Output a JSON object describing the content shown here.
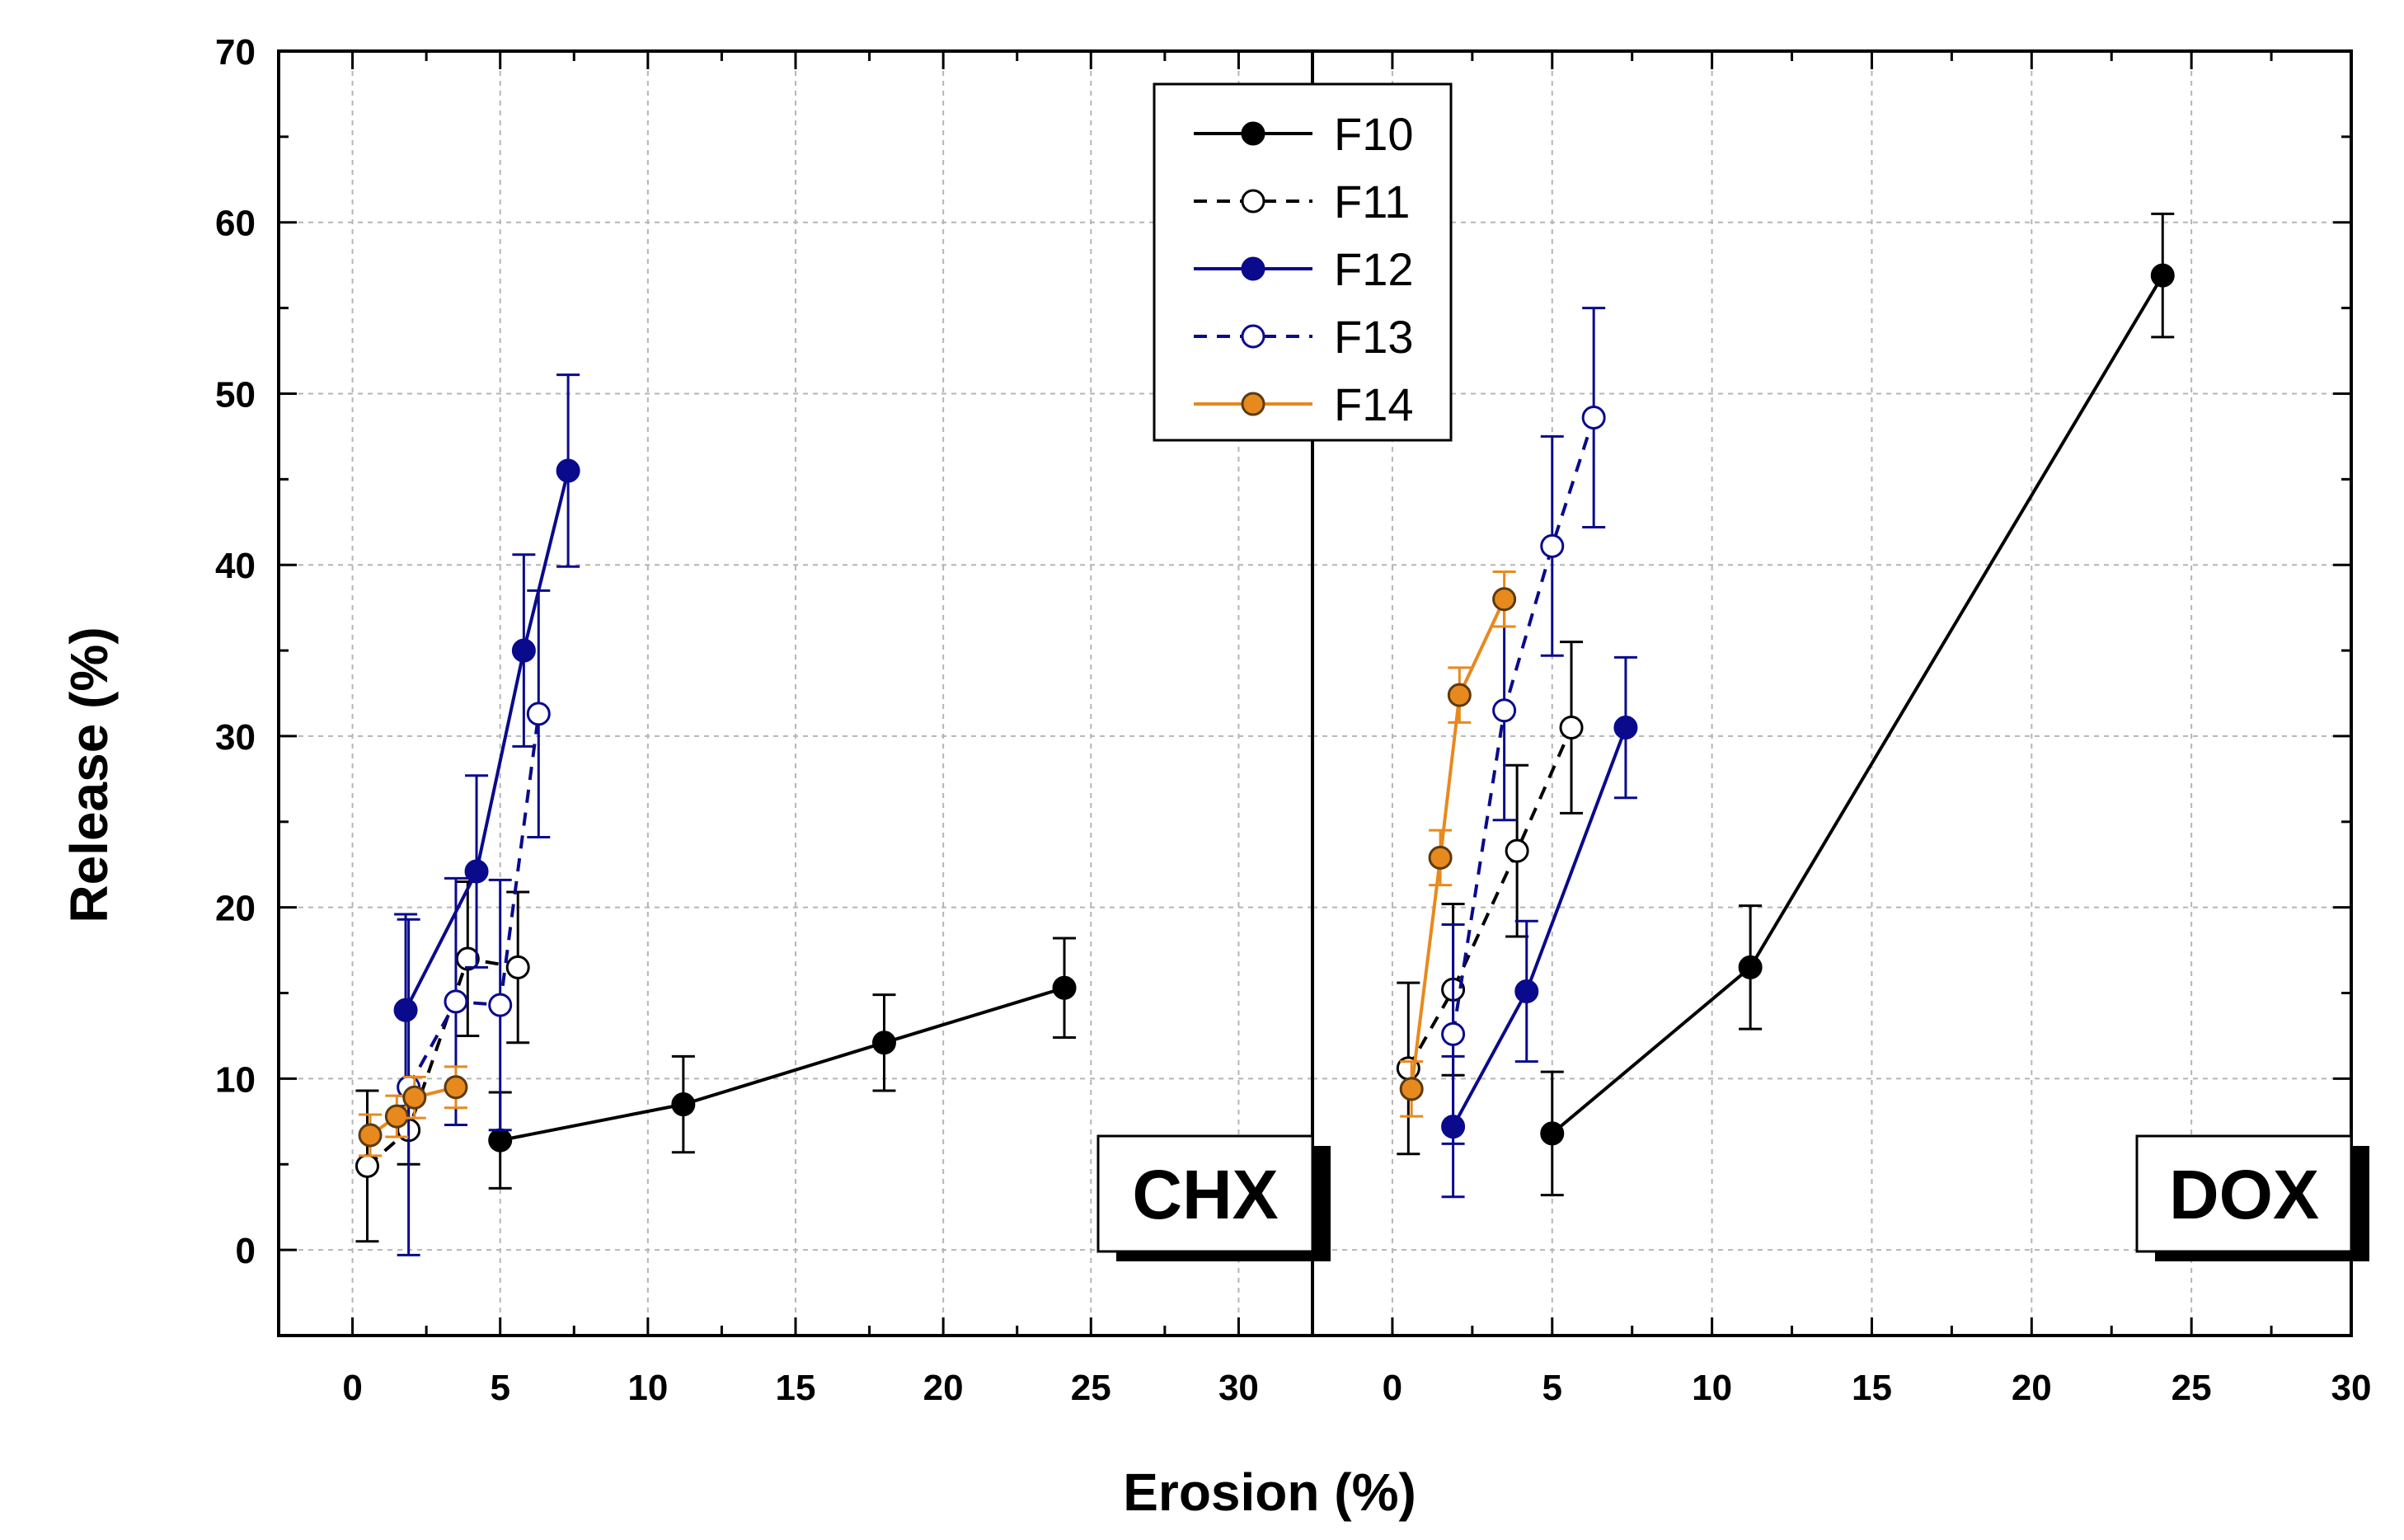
{
  "chart_data": {
    "type": "scatter",
    "xlabel": "Erosion (%)",
    "ylabel": "Release (%)",
    "ylim": [
      -5,
      70
    ],
    "yticks": [
      0,
      10,
      20,
      30,
      40,
      50,
      60,
      70
    ],
    "grid": true,
    "legend": {
      "placement": "top-center",
      "entries": [
        {
          "name": "F10",
          "color": "#000000",
          "dashed": false,
          "filled": true
        },
        {
          "name": "F11",
          "color": "#000000",
          "dashed": true,
          "filled": false
        },
        {
          "name": "F12",
          "color": "#0a0a8c",
          "dashed": false,
          "filled": true
        },
        {
          "name": "F13",
          "color": "#0a0a8c",
          "dashed": true,
          "filled": false
        },
        {
          "name": "F14",
          "color": "#e8891e",
          "dashed": false,
          "filled": true
        }
      ]
    },
    "panels": [
      {
        "label": "CHX",
        "xlim": [
          -2.5,
          32.5
        ],
        "xticks": [
          0,
          5,
          10,
          15,
          20,
          25,
          30
        ],
        "series": [
          {
            "name": "F10",
            "x": [
              5.0,
              11.2,
              18.0,
              24.1
            ],
            "y": [
              6.4,
              8.5,
              12.1,
              15.3
            ],
            "err": [
              2.8,
              2.8,
              2.8,
              2.9
            ]
          },
          {
            "name": "F11",
            "x": [
              0.5,
              1.9,
              3.9,
              5.6
            ],
            "y": [
              4.9,
              7.0,
              17.0,
              16.5
            ],
            "err": [
              4.4,
              2.0,
              4.5,
              4.4
            ]
          },
          {
            "name": "F12",
            "x": [
              1.8,
              4.2,
              5.8,
              7.3
            ],
            "y": [
              14.0,
              22.1,
              35.0,
              45.5
            ],
            "err": [
              5.6,
              5.6,
              5.6,
              5.6
            ]
          },
          {
            "name": "F13",
            "x": [
              1.9,
              3.5,
              5.0,
              6.3
            ],
            "y": [
              9.5,
              14.5,
              14.3,
              31.3
            ],
            "err": [
              9.8,
              7.2,
              7.3,
              7.2
            ]
          },
          {
            "name": "F14",
            "x": [
              0.6,
              1.5,
              2.1,
              3.5
            ],
            "y": [
              6.7,
              7.8,
              8.9,
              9.5
            ],
            "err": [
              1.2,
              1.2,
              1.2,
              1.2
            ]
          }
        ]
      },
      {
        "label": "DOX",
        "xlim": [
          -2.5,
          30
        ],
        "xticks": [
          0,
          5,
          10,
          15,
          20,
          25,
          30
        ],
        "series": [
          {
            "name": "F10",
            "x": [
              5.0,
              11.2,
              24.1
            ],
            "y": [
              6.8,
              16.5,
              56.9
            ],
            "err": [
              3.6,
              3.6,
              3.6
            ]
          },
          {
            "name": "F11",
            "x": [
              0.5,
              1.9,
              3.9,
              5.6
            ],
            "y": [
              10.6,
              15.2,
              23.3,
              30.5
            ],
            "err": [
              5.0,
              5.0,
              5.0,
              5.0
            ]
          },
          {
            "name": "F12",
            "x": [
              1.9,
              4.2,
              7.3
            ],
            "y": [
              7.2,
              15.1,
              30.5
            ],
            "err": [
              4.1,
              4.1,
              4.1
            ]
          },
          {
            "name": "F13",
            "x": [
              1.9,
              3.5,
              5.0,
              6.3
            ],
            "y": [
              12.6,
              31.5,
              41.1,
              48.6
            ],
            "err": [
              6.4,
              6.4,
              6.4,
              6.4
            ]
          },
          {
            "name": "F14",
            "x": [
              0.6,
              1.5,
              2.1,
              3.5
            ],
            "y": [
              9.4,
              22.9,
              32.4,
              38.0
            ],
            "err": [
              1.6,
              1.6,
              1.6,
              1.6
            ]
          }
        ]
      }
    ]
  }
}
